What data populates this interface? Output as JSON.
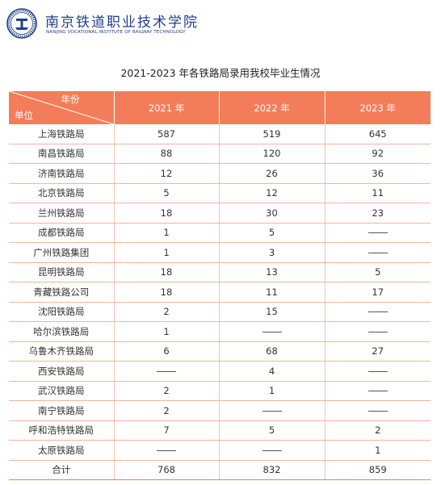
{
  "header": {
    "school_name_cn": "南京铁道职业技术学院",
    "school_name_en": "NANJING VOCATIONAL INSTITUTE OF RAILWAY TECHNOLOGY",
    "logo_icon": "school-seal-icon",
    "brand_color": "#1f3f8a"
  },
  "title": "2021-2023 年各铁路局录用我校毕业生情况",
  "table": {
    "header_color": "#f37d5a",
    "corner_top": "年份",
    "corner_bottom": "单位",
    "columns": [
      "2021 年",
      "2022 年",
      "2023 年"
    ],
    "rows": [
      {
        "unit": "上海铁路局",
        "v2021": "587",
        "v2022": "519",
        "v2023": "645"
      },
      {
        "unit": "南昌铁路局",
        "v2021": "88",
        "v2022": "120",
        "v2023": "92"
      },
      {
        "unit": "济南铁路局",
        "v2021": "12",
        "v2022": "26",
        "v2023": "36"
      },
      {
        "unit": "北京铁路局",
        "v2021": "5",
        "v2022": "12",
        "v2023": "11"
      },
      {
        "unit": "兰州铁路局",
        "v2021": "18",
        "v2022": "30",
        "v2023": "23"
      },
      {
        "unit": "成都铁路局",
        "v2021": "1",
        "v2022": "5",
        "v2023": null
      },
      {
        "unit": "广州铁路集团",
        "v2021": "1",
        "v2022": "3",
        "v2023": null
      },
      {
        "unit": "昆明铁路局",
        "v2021": "18",
        "v2022": "13",
        "v2023": "5"
      },
      {
        "unit": "青藏铁路公司",
        "v2021": "18",
        "v2022": "11",
        "v2023": "17"
      },
      {
        "unit": "沈阳铁路局",
        "v2021": "2",
        "v2022": "15",
        "v2023": null
      },
      {
        "unit": "哈尔滨铁路局",
        "v2021": "1",
        "v2022": null,
        "v2023": null
      },
      {
        "unit": "乌鲁木齐铁路局",
        "v2021": "6",
        "v2022": "68",
        "v2023": "27"
      },
      {
        "unit": "西安铁路局",
        "v2021": null,
        "v2022": "4",
        "v2023": null
      },
      {
        "unit": "武汉铁路局",
        "v2021": "2",
        "v2022": "1",
        "v2023": null
      },
      {
        "unit": "南宁铁路局",
        "v2021": "2",
        "v2022": null,
        "v2023": null
      },
      {
        "unit": "呼和浩特铁路局",
        "v2021": "7",
        "v2022": "5",
        "v2023": "2"
      },
      {
        "unit": "太原铁路局",
        "v2021": null,
        "v2022": null,
        "v2023": "1"
      }
    ],
    "total": {
      "unit": "合计",
      "v2021": "768",
      "v2022": "832",
      "v2023": "859"
    }
  }
}
